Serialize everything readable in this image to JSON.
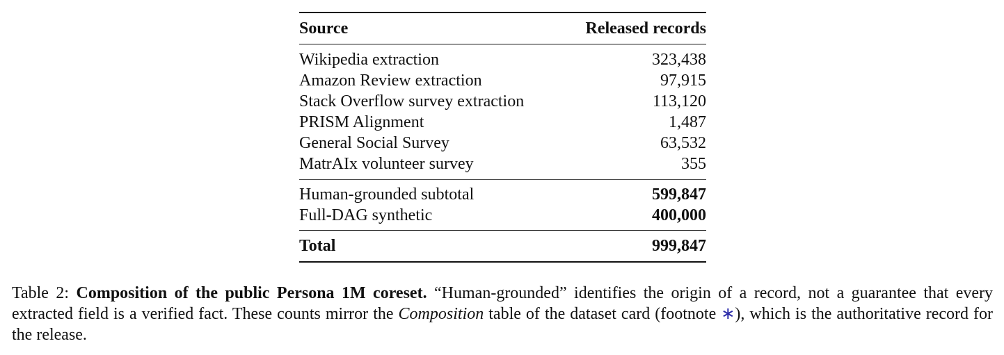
{
  "table": {
    "header": [
      "Source",
      "Released records"
    ],
    "rows": [
      [
        "Wikipedia extraction",
        "323,438"
      ],
      [
        "Amazon Review extraction",
        "97,915"
      ],
      [
        "Stack Overflow survey extraction",
        "113,120"
      ],
      [
        "PRISM Alignment",
        "1,487"
      ],
      [
        "General Social Survey",
        "63,532"
      ],
      [
        "MatrAIx volunteer survey",
        "355"
      ]
    ],
    "subtotals": [
      [
        "Human-grounded subtotal",
        "599,847"
      ],
      [
        "Full-DAG synthetic",
        "400,000"
      ]
    ],
    "total": [
      "Total",
      "999,847"
    ]
  },
  "caption": {
    "label": "Table 2:",
    "title": "Composition of the public Persona 1M coreset.",
    "text_1": "“Human-grounded” identifies the origin of a record, not a guarantee that every extracted field is a verified fact. These counts mirror the",
    "emphasis": "Composition",
    "text_2": "table of the dataset card (footnote",
    "footnote_mark": "∗",
    "text_3": "), which is the authoritative record for the release."
  }
}
